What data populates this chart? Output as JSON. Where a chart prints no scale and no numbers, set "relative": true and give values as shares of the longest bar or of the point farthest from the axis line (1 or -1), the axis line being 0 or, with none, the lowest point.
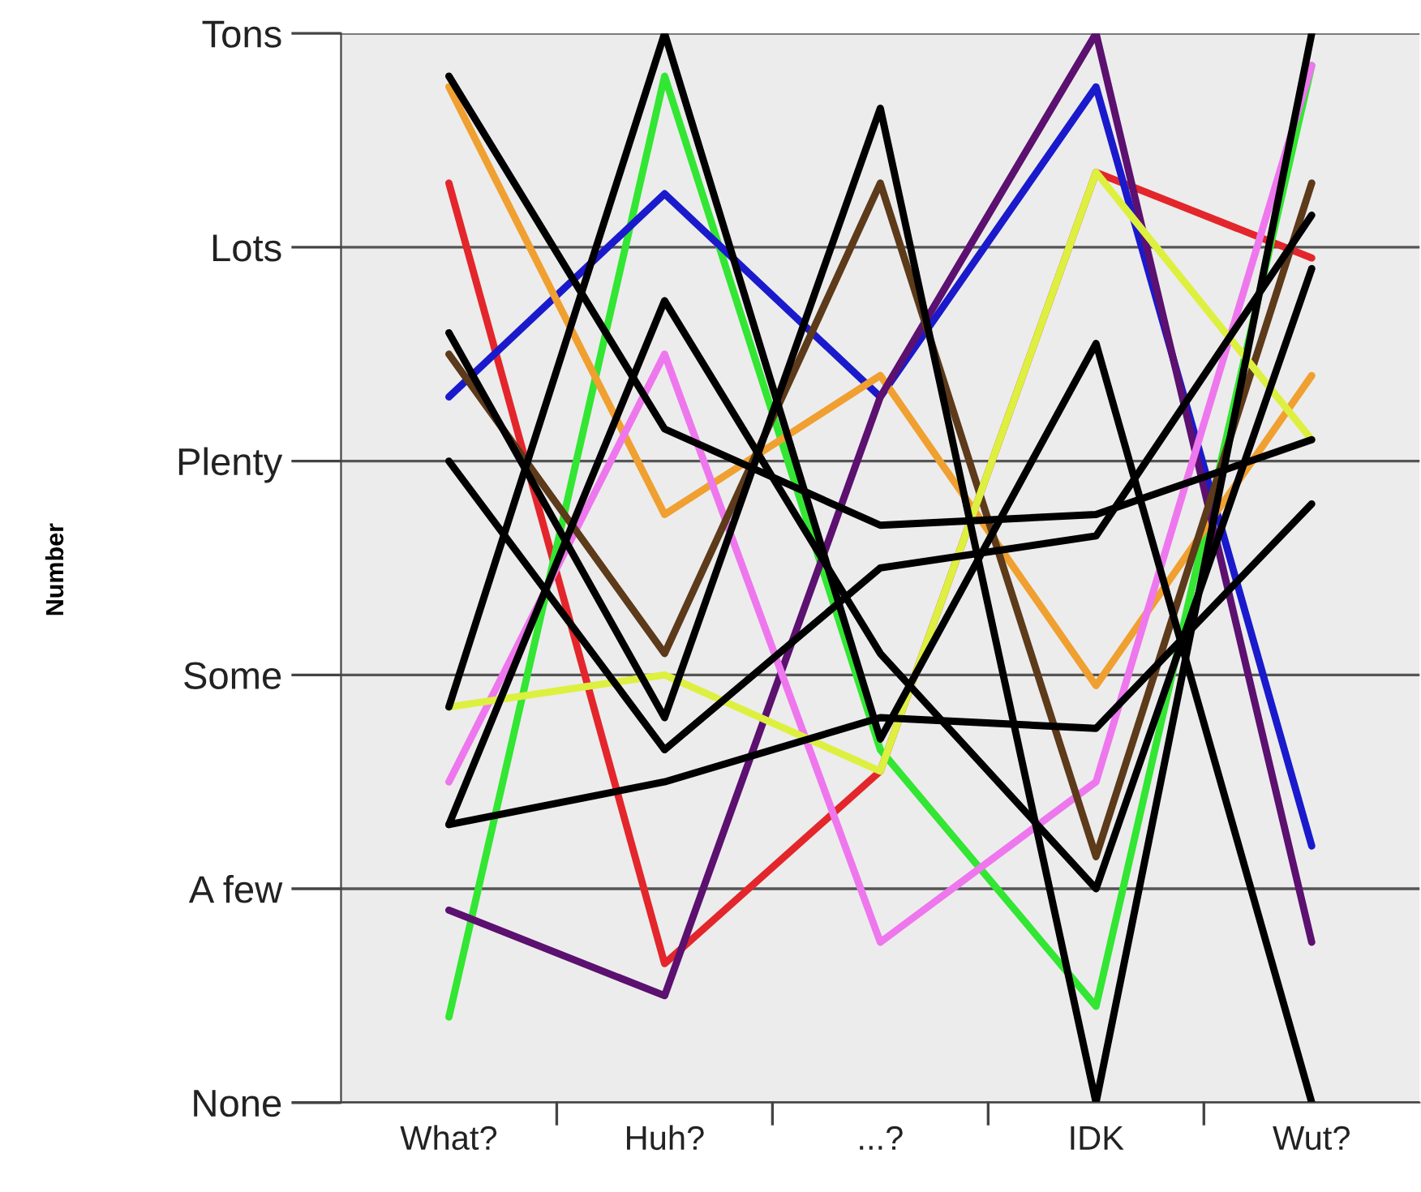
{
  "chart_data": {
    "type": "line",
    "annotations": [
      "Number"
    ],
    "relative": true,
    "categories": [
      "What?",
      "Huh?",
      "...?",
      "IDK",
      "Wut?"
    ],
    "y_categories": [
      "Tons",
      "Lots",
      "Plenty",
      "Some",
      "A few",
      "None"
    ],
    "grid": "y",
    "marker": "none",
    "line_style": "solid",
    "series": [
      {
        "color": "#e3262b",
        "values": [
          0.86,
          0.13,
          0.31,
          0.87,
          0.79
        ]
      },
      {
        "color": "#33e633",
        "values": [
          0.08,
          0.96,
          0.33,
          0.09,
          0.97
        ]
      },
      {
        "color": "#1a1acc",
        "values": [
          0.66,
          0.85,
          0.66,
          0.95,
          0.24
        ]
      },
      {
        "color": "#f0a030",
        "values": [
          0.95,
          0.55,
          0.68,
          0.39,
          0.68
        ]
      },
      {
        "color": "#5c1070",
        "values": [
          0.18,
          0.1,
          0.66,
          1,
          0.15
        ]
      },
      {
        "color": "#ee77ee",
        "values": [
          0.3,
          0.7,
          0.15,
          0.3,
          0.97
        ]
      },
      {
        "color": "#5c3a1a",
        "values": [
          0.7,
          0.42,
          0.86,
          0.23,
          0.86
        ]
      },
      {
        "color": "#ddf040",
        "values": [
          0.37,
          0.4,
          0.31,
          0.87,
          0.62
        ]
      },
      {
        "color": "#000000",
        "values": [
          0.96,
          0.63,
          0.54,
          0.55,
          0.62
        ]
      },
      {
        "color": "#000000",
        "values": [
          0.72,
          0.36,
          0.93,
          0,
          1
        ]
      },
      {
        "color": "#000000",
        "values": [
          0.6,
          0.33,
          0.5,
          0.53,
          0.83
        ]
      },
      {
        "color": "#000000",
        "values": [
          0.37,
          1,
          0.34,
          0.71,
          0
        ]
      },
      {
        "color": "#000000",
        "values": [
          0.26,
          0.3,
          0.36,
          0.35,
          0.56
        ]
      },
      {
        "color": "#000000",
        "values": [
          0.26,
          0.75,
          0.42,
          0.2,
          0.78
        ]
      }
    ]
  }
}
